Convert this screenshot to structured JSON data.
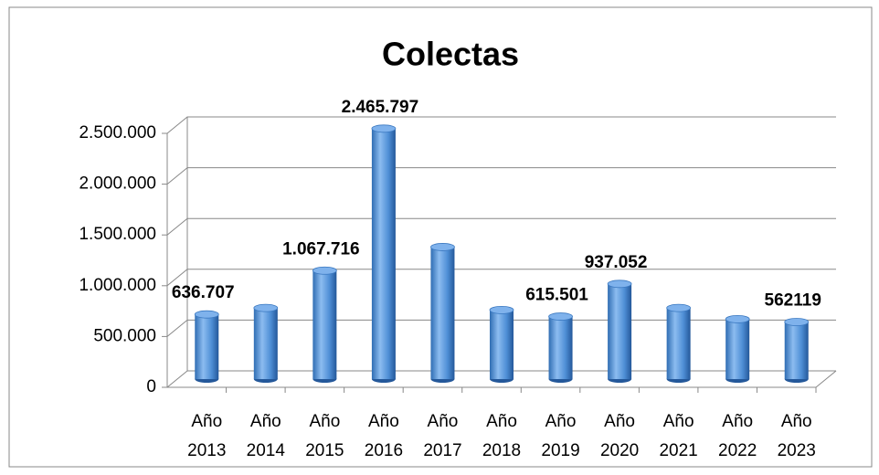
{
  "chart_data": {
    "type": "bar3d",
    "title": "Colectas",
    "categories": [
      "Año 2013",
      "Año 2014",
      "Año 2015",
      "Año 2016",
      "Año 2017",
      "Año 2018",
      "Año 2019",
      "Año 2020",
      "Año 2021",
      "Año 2022",
      "Año 2023"
    ],
    "values": [
      636707,
      700000,
      1067716,
      2465797,
      1300000,
      680000,
      615501,
      937052,
      700000,
      590000,
      562119
    ],
    "value_labels": [
      "636.707",
      null,
      "1.067.716",
      "2.465.797",
      null,
      null,
      "615.501",
      "937.052",
      null,
      null,
      "562119"
    ],
    "color": "#4f8fd6",
    "ylim": [
      0,
      2500000
    ],
    "yticks": [
      0,
      {
        "value": 500000,
        "label": "500.000"
      },
      {
        "value": 1000000,
        "label": "1.000.000"
      },
      {
        "value": 1500000,
        "label": "1.500.000"
      },
      {
        "value": 2000000,
        "label": "2.000.000"
      },
      {
        "value": 2500000,
        "label": "2.500.000"
      }
    ],
    "grid": true
  }
}
